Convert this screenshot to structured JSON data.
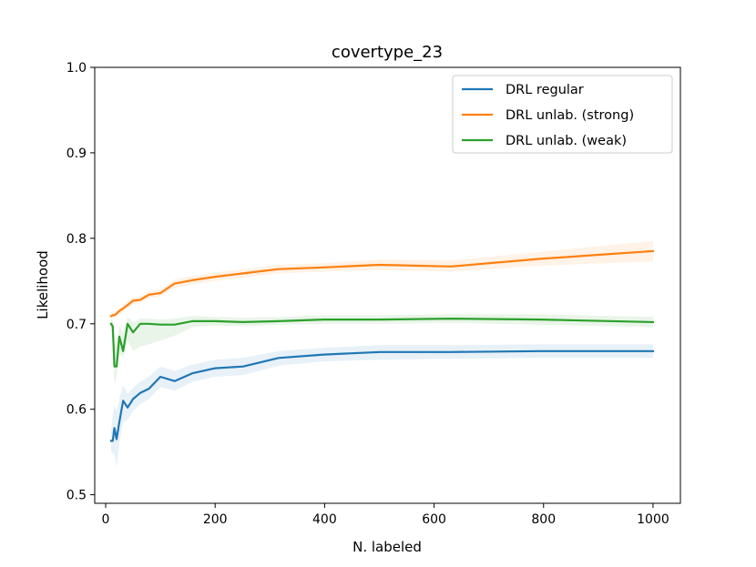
{
  "chart_data": {
    "type": "line",
    "title": "covertype_23",
    "xlabel": "N. labeled",
    "ylabel": "Likelihood",
    "xlim": [
      -20,
      1050
    ],
    "ylim": [
      0.49,
      1.0
    ],
    "xticks": [
      0,
      200,
      400,
      600,
      800,
      1000
    ],
    "yticks": [
      0.5,
      0.6,
      0.7,
      0.8,
      0.9,
      1.0
    ],
    "xtick_labels": [
      "0",
      "200",
      "400",
      "600",
      "800",
      "1000"
    ],
    "ytick_labels": [
      "0.5",
      "0.6",
      "0.7",
      "0.8",
      "0.9",
      "1.0"
    ],
    "legend_position": "top-right",
    "grid": false,
    "series": [
      {
        "name": "DRL regular",
        "color": "#1f77b4",
        "x": [
          10,
          13,
          16,
          20,
          25,
          32,
          40,
          50,
          63,
          79,
          100,
          126,
          158,
          200,
          251,
          316,
          398,
          501,
          631,
          794,
          1000
        ],
        "y": [
          0.563,
          0.563,
          0.578,
          0.565,
          0.585,
          0.61,
          0.602,
          0.612,
          0.619,
          0.624,
          0.638,
          0.633,
          0.642,
          0.648,
          0.65,
          0.66,
          0.664,
          0.667,
          0.667,
          0.668,
          0.668
        ],
        "lower": [
          0.552,
          0.548,
          0.548,
          0.532,
          0.56,
          0.585,
          0.588,
          0.598,
          0.606,
          0.612,
          0.626,
          0.622,
          0.632,
          0.638,
          0.64,
          0.651,
          0.656,
          0.658,
          0.659,
          0.66,
          0.66
        ],
        "upper": [
          0.574,
          0.592,
          0.605,
          0.598,
          0.612,
          0.628,
          0.618,
          0.625,
          0.632,
          0.638,
          0.65,
          0.645,
          0.652,
          0.658,
          0.66,
          0.668,
          0.672,
          0.675,
          0.675,
          0.676,
          0.676
        ]
      },
      {
        "name": "DRL unlab. (strong)",
        "color": "#ff7f0e",
        "x": [
          10,
          13,
          16,
          20,
          25,
          32,
          40,
          50,
          63,
          79,
          100,
          126,
          158,
          200,
          251,
          316,
          398,
          501,
          631,
          794,
          1000
        ],
        "y": [
          0.709,
          0.71,
          0.71,
          0.712,
          0.715,
          0.718,
          0.722,
          0.727,
          0.728,
          0.734,
          0.736,
          0.747,
          0.751,
          0.755,
          0.759,
          0.764,
          0.766,
          0.769,
          0.767,
          0.776,
          0.785
        ],
        "lower": [
          0.706,
          0.706,
          0.706,
          0.708,
          0.711,
          0.714,
          0.718,
          0.723,
          0.724,
          0.73,
          0.732,
          0.742,
          0.746,
          0.75,
          0.754,
          0.759,
          0.761,
          0.763,
          0.761,
          0.768,
          0.773
        ],
        "upper": [
          0.712,
          0.714,
          0.714,
          0.716,
          0.719,
          0.722,
          0.726,
          0.731,
          0.732,
          0.738,
          0.74,
          0.752,
          0.756,
          0.76,
          0.764,
          0.769,
          0.771,
          0.775,
          0.774,
          0.784,
          0.797
        ]
      },
      {
        "name": "DRL unlab. (weak)",
        "color": "#2ca02c",
        "x": [
          10,
          13,
          16,
          20,
          25,
          32,
          40,
          50,
          63,
          79,
          100,
          126,
          158,
          200,
          251,
          316,
          398,
          501,
          631,
          794,
          1000
        ],
        "y": [
          0.7,
          0.697,
          0.65,
          0.65,
          0.685,
          0.668,
          0.7,
          0.69,
          0.7,
          0.7,
          0.699,
          0.699,
          0.703,
          0.703,
          0.702,
          0.703,
          0.705,
          0.705,
          0.706,
          0.705,
          0.702
        ],
        "lower": [
          0.695,
          0.672,
          0.628,
          0.638,
          0.665,
          0.66,
          0.68,
          0.668,
          0.673,
          0.676,
          0.68,
          0.686,
          0.696,
          0.698,
          0.697,
          0.699,
          0.7,
          0.7,
          0.701,
          0.699,
          0.696
        ],
        "upper": [
          0.705,
          0.705,
          0.68,
          0.675,
          0.698,
          0.688,
          0.708,
          0.702,
          0.706,
          0.706,
          0.705,
          0.706,
          0.709,
          0.708,
          0.707,
          0.708,
          0.71,
          0.71,
          0.711,
          0.711,
          0.708
        ]
      }
    ]
  }
}
